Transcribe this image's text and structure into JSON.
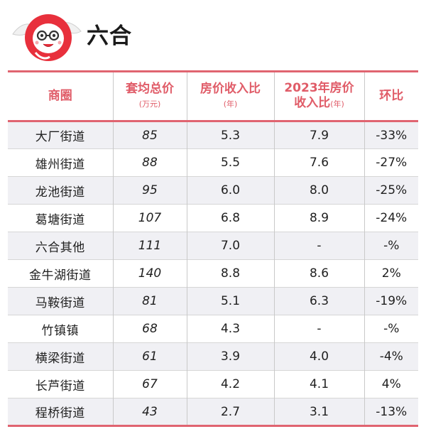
{
  "header": {
    "title": "六合"
  },
  "table": {
    "columns": [
      {
        "label": "商圈",
        "sub": ""
      },
      {
        "label": "套均总价",
        "sub": "(万元)"
      },
      {
        "label": "房价收入比",
        "sub": "(年)"
      },
      {
        "label": "2023年房价",
        "label2": "收入比",
        "sub": "(年)"
      },
      {
        "label": "环比",
        "sub": ""
      }
    ],
    "rows": [
      {
        "area": "大厂街道",
        "avg_price": "85",
        "ratio": "5.3",
        "ratio_2023": "7.9",
        "change": "-33%"
      },
      {
        "area": "雄州街道",
        "avg_price": "88",
        "ratio": "5.5",
        "ratio_2023": "7.6",
        "change": "-27%"
      },
      {
        "area": "龙池街道",
        "avg_price": "95",
        "ratio": "6.0",
        "ratio_2023": "8.0",
        "change": "-25%"
      },
      {
        "area": "葛塘街道",
        "avg_price": "107",
        "ratio": "6.8",
        "ratio_2023": "8.9",
        "change": "-24%"
      },
      {
        "area": "六合其他",
        "avg_price": "111",
        "ratio": "7.0",
        "ratio_2023": "-",
        "change": "-%"
      },
      {
        "area": "金牛湖街道",
        "avg_price": "140",
        "ratio": "8.8",
        "ratio_2023": "8.6",
        "change": "2%"
      },
      {
        "area": "马鞍街道",
        "avg_price": "81",
        "ratio": "5.1",
        "ratio_2023": "6.3",
        "change": "-19%"
      },
      {
        "area": "竹镇镇",
        "avg_price": "68",
        "ratio": "4.3",
        "ratio_2023": "-",
        "change": "-%"
      },
      {
        "area": "横梁街道",
        "avg_price": "61",
        "ratio": "3.9",
        "ratio_2023": "4.0",
        "change": "-4%"
      },
      {
        "area": "长芦街道",
        "avg_price": "67",
        "ratio": "4.2",
        "ratio_2023": "4.1",
        "change": "4%"
      },
      {
        "area": "程桥街道",
        "avg_price": "43",
        "ratio": "2.7",
        "ratio_2023": "3.1",
        "change": "-13%"
      }
    ]
  },
  "colors": {
    "accent": "#e06470",
    "header_text": "#e05c68",
    "stripe": "#f0f0f4",
    "logo_red": "#e8303c"
  }
}
